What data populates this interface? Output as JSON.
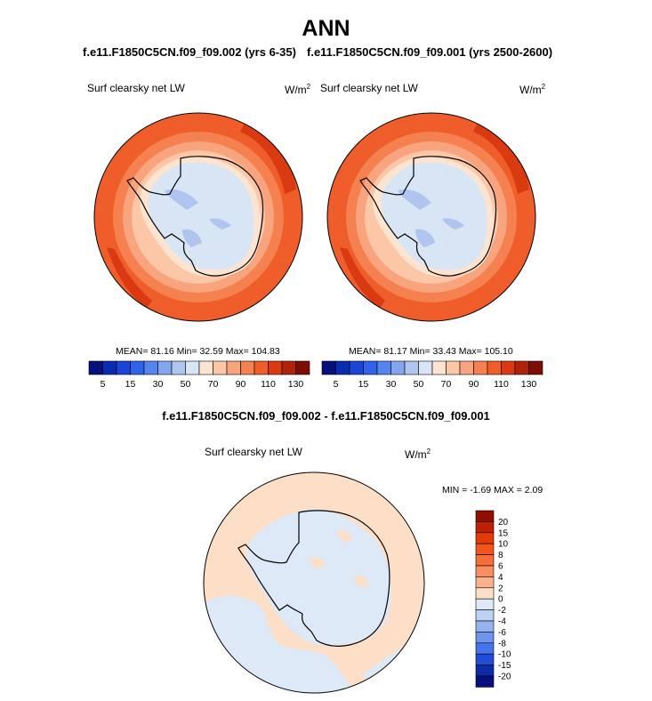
{
  "season": "ANN",
  "panels": {
    "left": {
      "title": "f.e11.F1850C5CN.f09_f09.002 (yrs 6-35)",
      "variable": "Surf clearsky net LW",
      "units": "W/m",
      "units_exp": "2",
      "stats": "MEAN=  81.16  Min=  32.59  Max= 104.83"
    },
    "right": {
      "title": "f.e11.F1850C5CN.f09_f09.001 (yrs 2500-2600)",
      "variable": "Surf clearsky net LW",
      "units": "W/m",
      "units_exp": "2",
      "stats": "MEAN=  81.17  Min=  33.43  Max= 105.10"
    },
    "diff": {
      "title": "f.e11.F1850C5CN.f09_f09.002 - f.e11.F1850C5CN.f09_f09.001",
      "variable": "Surf clearsky net LW",
      "units": "W/m",
      "units_exp": "2",
      "stats": "MIN =  -1.69 MAX =   2.09"
    }
  },
  "chart_data": [
    {
      "type": "heatmap",
      "projection": "polar stereographic (South Pole)",
      "variable": "Surf clearsky net LW",
      "units": "W/m2",
      "stats": {
        "mean": 81.16,
        "min": 32.59,
        "max": 104.83
      },
      "colorbar": {
        "tick_labels": [
          "5",
          "15",
          "30",
          "50",
          "70",
          "90",
          "110",
          "130"
        ],
        "colors": [
          "#05107a",
          "#0a2cb0",
          "#1b45d6",
          "#2f63ec",
          "#5585ee",
          "#85a6ee",
          "#b0c4f0",
          "#d8e5f4",
          "#fde4d0",
          "#fbc7a6",
          "#f8a47e",
          "#f4814f",
          "#ee5d2a",
          "#d93a12",
          "#b0220a",
          "#7e0d05"
        ]
      }
    },
    {
      "type": "heatmap",
      "projection": "polar stereographic (South Pole)",
      "variable": "Surf clearsky net LW",
      "units": "W/m2",
      "stats": {
        "mean": 81.17,
        "min": 33.43,
        "max": 105.1
      },
      "colorbar": {
        "tick_labels": [
          "5",
          "15",
          "30",
          "50",
          "70",
          "90",
          "110",
          "130"
        ],
        "colors": [
          "#05107a",
          "#0a2cb0",
          "#1b45d6",
          "#2f63ec",
          "#5585ee",
          "#85a6ee",
          "#b0c4f0",
          "#d8e5f4",
          "#fde4d0",
          "#fbc7a6",
          "#f8a47e",
          "#f4814f",
          "#ee5d2a",
          "#d93a12",
          "#b0220a",
          "#7e0d05"
        ]
      }
    },
    {
      "type": "heatmap",
      "projection": "polar stereographic (South Pole)",
      "variable": "Surf clearsky net LW",
      "units": "W/m2",
      "stats": {
        "min": -1.69,
        "max": 2.09
      },
      "colorbar": {
        "tick_labels": [
          "20",
          "15",
          "10",
          "8",
          "6",
          "4",
          "2",
          "0",
          "-2",
          "-4",
          "-6",
          "-8",
          "-10",
          "-15",
          "-20"
        ],
        "colors": [
          "#8f1000",
          "#bf2000",
          "#e63a05",
          "#f4541e",
          "#f56d38",
          "#f88e60",
          "#fbb18b",
          "#fddec6",
          "#dde9f7",
          "#bdd3f3",
          "#95b4ef",
          "#6f94ec",
          "#4574ea",
          "#1f4cd8",
          "#0c2ba8",
          "#05107a"
        ]
      }
    }
  ]
}
